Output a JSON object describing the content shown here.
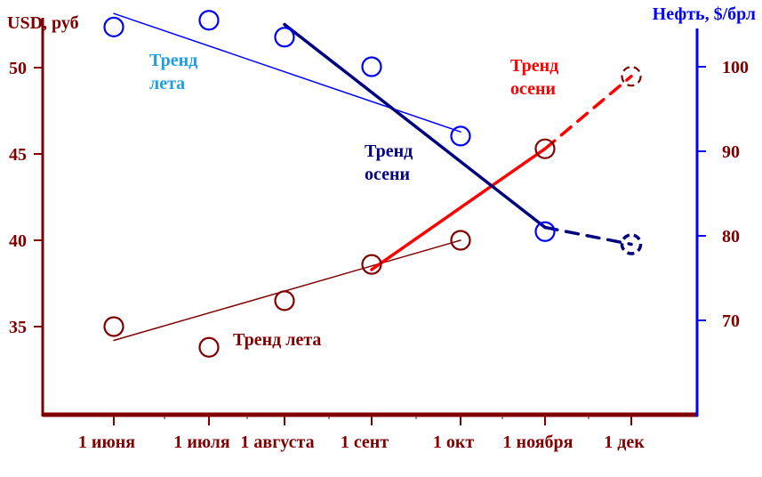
{
  "chart_data": {
    "type": "line",
    "left_axis": {
      "label": "USD, руб",
      "ticks": [
        35,
        40,
        45,
        50
      ],
      "color": "#800000"
    },
    "right_axis": {
      "label": "Нефть, $/брл",
      "ticks": [
        70,
        80,
        90,
        100
      ],
      "color": "#0000ff"
    },
    "categories": [
      "1 июня",
      "1 июля",
      "1 августа",
      "1 сент",
      "1 окт",
      "1 ноября",
      "1 дек"
    ],
    "series": [
      {
        "axis": "left",
        "color": "#800000",
        "points": [
          {
            "x": "1 июня",
            "y": 35.0
          },
          {
            "x": "1 июля",
            "y": 33.8
          },
          {
            "x": "1 августа",
            "y": 36.5
          },
          {
            "x": "1 сент",
            "y": 38.6
          },
          {
            "x": "1 окт",
            "y": 40.0
          },
          {
            "x": "1 ноября",
            "y": 45.3
          },
          {
            "x": "1 дек",
            "y": 49.5,
            "forecast": true
          }
        ]
      },
      {
        "axis": "right",
        "color": "#0000ff",
        "points": [
          {
            "x": "1 июня",
            "y": 104.7
          },
          {
            "x": "1 июля",
            "y": 105.5
          },
          {
            "x": "1 августа",
            "y": 103.5
          },
          {
            "x": "1 сент",
            "y": 100.0
          },
          {
            "x": "1 окт",
            "y": 91.8
          },
          {
            "x": "1 ноября",
            "y": 80.5
          },
          {
            "x": "1 дек",
            "y": 79.0,
            "forecast": true
          }
        ]
      }
    ],
    "trends": [
      {
        "label": "Тренд лета",
        "axis": "left",
        "color": "#800000",
        "from": {
          "x": "1 июня",
          "y": 34.2
        },
        "to": {
          "x": "1 окт",
          "y": 40.0
        }
      },
      {
        "label": "Тренд осени",
        "axis": "left",
        "color": "#ff0000",
        "from": {
          "x": "1 сент",
          "y": 38.3
        },
        "to": {
          "x": "1 ноября",
          "y": 45.3
        },
        "forecast_to": {
          "x": "1 дек",
          "y": 49.5
        }
      },
      {
        "label": "Тренд лета",
        "axis": "right",
        "color": "#0000ff",
        "from": {
          "x": "1 июня",
          "y": 106.3
        },
        "to": {
          "x": "1 окт",
          "y": 92.3
        }
      },
      {
        "label": "Тренд осени",
        "axis": "right",
        "color": "#000080",
        "from": {
          "x": "1 августа",
          "y": 105.0
        },
        "to": {
          "x": "1 ноября",
          "y": 81.0
        },
        "forecast_to": {
          "x": "1 дек",
          "y": 79.0
        }
      }
    ],
    "annotations": [
      {
        "text_lines": [
          "Тренд",
          "лета"
        ],
        "color": "#1e9ee0"
      },
      {
        "text_lines": [
          "Тренд",
          "осени"
        ],
        "color": "#000080"
      },
      {
        "text_lines": [
          "Тренд",
          "осени"
        ],
        "color": "#ff0000"
      },
      {
        "text_lines": [
          "Тренд лета"
        ],
        "color": "#800000"
      }
    ]
  }
}
